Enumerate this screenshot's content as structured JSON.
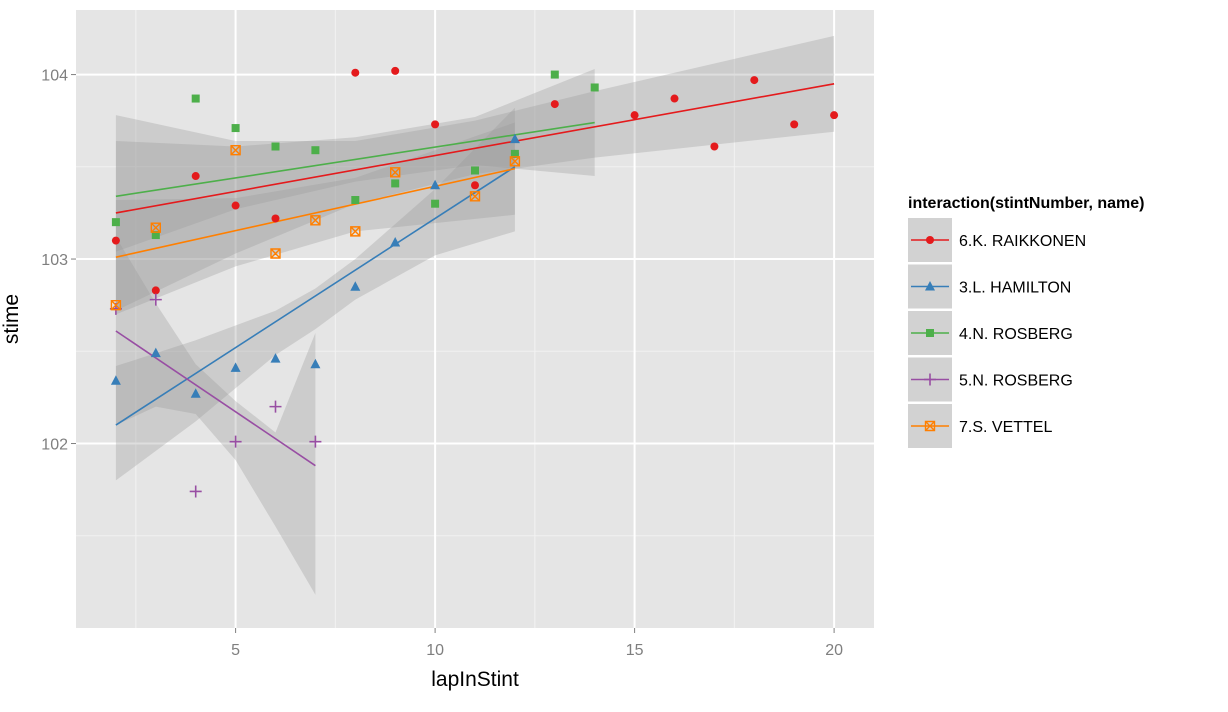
{
  "chart_data": {
    "type": "scatter",
    "title": "",
    "xlabel": "lapInStint",
    "ylabel": "stime",
    "xlim": [
      1,
      21
    ],
    "ylim": [
      101.0,
      104.35
    ],
    "xticks": [
      5,
      10,
      15,
      20
    ],
    "yticks": [
      102,
      103,
      104
    ],
    "xtick_labels": [
      "5",
      "10",
      "15",
      "20"
    ],
    "ytick_labels": [
      "102",
      "103",
      "104"
    ],
    "grid": true,
    "legend": {
      "title": "interaction(stintNumber, name)",
      "position": "right"
    },
    "series": [
      {
        "name": "6.K. RAIKKONEN",
        "color": "#e41a1c",
        "shape": "circle",
        "points": [
          [
            2,
            103.1
          ],
          [
            3,
            102.83
          ],
          [
            4,
            103.45
          ],
          [
            5,
            103.29
          ],
          [
            6,
            103.22
          ],
          [
            8,
            104.01
          ],
          [
            9,
            104.02
          ],
          [
            10,
            103.73
          ],
          [
            11,
            103.4
          ],
          [
            12,
            103.57
          ],
          [
            13,
            103.84
          ],
          [
            15,
            103.78
          ],
          [
            16,
            103.87
          ],
          [
            17,
            103.61
          ],
          [
            18,
            103.97
          ],
          [
            19,
            103.73
          ],
          [
            20,
            103.78
          ]
        ],
        "fit": {
          "x": [
            2,
            20
          ],
          "y": [
            103.25,
            103.95
          ]
        },
        "band": {
          "x": [
            2,
            5,
            8,
            11,
            14,
            17,
            20
          ],
          "lower": [
            102.72,
            103.03,
            103.3,
            103.46,
            103.55,
            103.62,
            103.69
          ],
          "upper": [
            103.78,
            103.64,
            103.64,
            103.75,
            103.91,
            104.06,
            104.21
          ]
        }
      },
      {
        "name": "3.L. HAMILTON",
        "color": "#377eb8",
        "shape": "triangle",
        "points": [
          [
            2,
            102.34
          ],
          [
            3,
            102.49
          ],
          [
            4,
            102.27
          ],
          [
            5,
            102.41
          ],
          [
            6,
            102.46
          ],
          [
            7,
            102.43
          ],
          [
            8,
            102.85
          ],
          [
            9,
            103.09
          ],
          [
            10,
            103.4
          ],
          [
            12,
            103.65
          ]
        ],
        "fit": {
          "x": [
            2,
            12
          ],
          "y": [
            102.1,
            103.5
          ]
        },
        "band": {
          "x": [
            2,
            4,
            6,
            7,
            8,
            10,
            12
          ],
          "lower": [
            101.8,
            102.12,
            102.48,
            102.62,
            102.78,
            103.02,
            103.15
          ],
          "upper": [
            102.42,
            102.56,
            102.72,
            102.84,
            103.0,
            103.38,
            103.82
          ]
        }
      },
      {
        "name": "4.N. ROSBERG",
        "color": "#4daf4a",
        "shape": "square",
        "points": [
          [
            2,
            103.2
          ],
          [
            3,
            103.13
          ],
          [
            4,
            103.87
          ],
          [
            5,
            103.71
          ],
          [
            6,
            103.61
          ],
          [
            7,
            103.59
          ],
          [
            8,
            103.32
          ],
          [
            9,
            103.41
          ],
          [
            10,
            103.3
          ],
          [
            11,
            103.48
          ],
          [
            12,
            103.57
          ],
          [
            13,
            104.0
          ],
          [
            14,
            103.93
          ]
        ],
        "fit": {
          "x": [
            2,
            14
          ],
          "y": [
            103.34,
            103.74
          ]
        },
        "band": {
          "x": [
            2,
            5,
            8,
            11,
            14
          ],
          "lower": [
            103.04,
            103.27,
            103.42,
            103.51,
            103.45
          ],
          "upper": [
            103.64,
            103.61,
            103.66,
            103.77,
            104.03
          ]
        }
      },
      {
        "name": "5.N. ROSBERG",
        "color": "#984ea3",
        "shape": "plus",
        "points": [
          [
            2,
            102.73
          ],
          [
            3,
            102.78
          ],
          [
            4,
            101.74
          ],
          [
            5,
            102.01
          ],
          [
            6,
            102.2
          ],
          [
            7,
            102.01
          ]
        ],
        "fit": {
          "x": [
            2,
            7
          ],
          "y": [
            102.61,
            101.88
          ]
        },
        "band": {
          "x": [
            2,
            3,
            4,
            5,
            6,
            7
          ],
          "lower": [
            102.1,
            102.2,
            102.16,
            101.91,
            101.55,
            101.18
          ],
          "upper": [
            103.12,
            102.76,
            102.43,
            102.23,
            102.06,
            102.6
          ]
        }
      },
      {
        "name": "7.S. VETTEL",
        "color": "#ff7f00",
        "shape": "square-x",
        "points": [
          [
            2,
            102.75
          ],
          [
            3,
            103.17
          ],
          [
            5,
            103.59
          ],
          [
            6,
            103.03
          ],
          [
            7,
            103.21
          ],
          [
            8,
            103.15
          ],
          [
            9,
            103.47
          ],
          [
            11,
            103.34
          ],
          [
            12,
            103.53
          ]
        ],
        "fit": {
          "x": [
            2,
            12
          ],
          "y": [
            103.01,
            103.49
          ]
        },
        "band": {
          "x": [
            2,
            5,
            8,
            12
          ],
          "lower": [
            102.7,
            102.96,
            103.15,
            103.24
          ],
          "upper": [
            103.32,
            103.33,
            103.44,
            103.74
          ]
        }
      }
    ]
  }
}
